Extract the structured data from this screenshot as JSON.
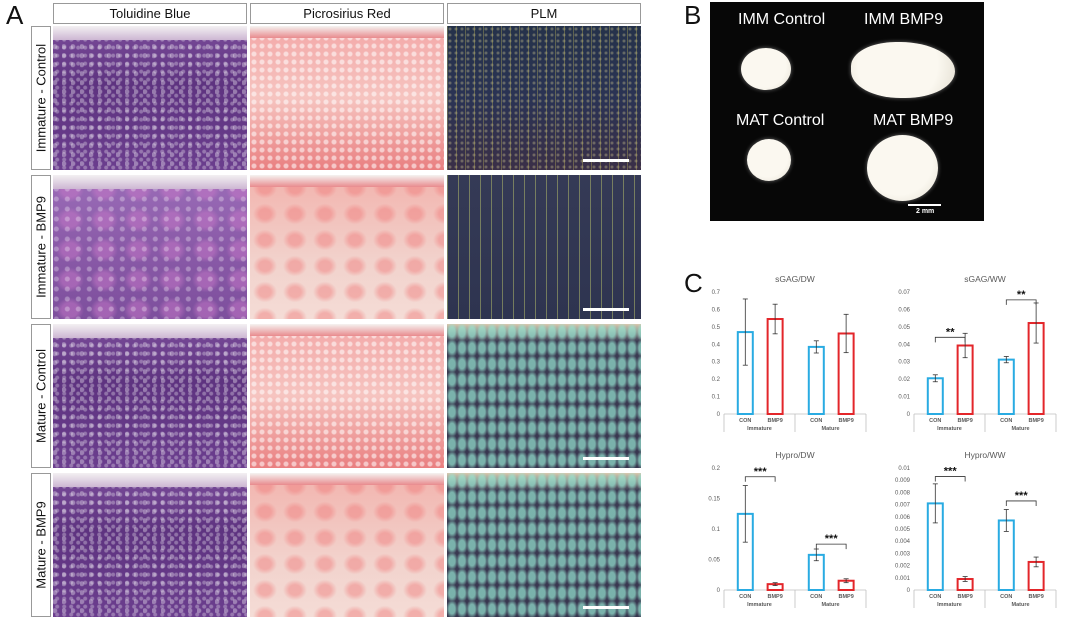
{
  "panel_a": {
    "letter": "A",
    "columns": [
      "Toluidine Blue",
      "Picrosirius Red",
      "PLM"
    ],
    "rows": [
      "Immature - Control",
      "Immature - BMP9",
      "Mature - Control",
      "Mature - BMP9"
    ]
  },
  "panel_b": {
    "letter": "B",
    "labels": [
      "IMM Control",
      "IMM BMP9",
      "MAT Control",
      "MAT BMP9"
    ],
    "scale_bar": "2 mm"
  },
  "panel_c": {
    "letter": "C"
  },
  "colors": {
    "control": "#29abe2",
    "bmp9": "#e3262a",
    "axis": "#bfbfbf"
  },
  "chart_data": [
    {
      "type": "bar",
      "title": "sGAG/DW",
      "groups": [
        "Immature",
        "Mature"
      ],
      "categories": [
        "CON",
        "BMP9",
        "CON",
        "BMP9"
      ],
      "values": [
        0.47,
        0.545,
        0.385,
        0.462
      ],
      "errors": [
        0.19,
        0.085,
        0.035,
        0.11
      ],
      "yticks": [
        "0",
        "0.1",
        "0.2",
        "0.3",
        "0.4",
        "0.5",
        "0.6",
        "0.7"
      ],
      "ylim": [
        0,
        0.7
      ],
      "significance": []
    },
    {
      "type": "bar",
      "title": "sGAG/WW",
      "groups": [
        "Immature",
        "Mature"
      ],
      "categories": [
        "CON",
        "BMP9",
        "CON",
        "BMP9"
      ],
      "values": [
        0.0205,
        0.0393,
        0.0312,
        0.0522
      ],
      "errors": [
        0.002,
        0.007,
        0.0018,
        0.0115
      ],
      "yticks": [
        "0",
        "0.01",
        "0.02",
        "0.03",
        "0.04",
        "0.05",
        "0.06",
        "0.07"
      ],
      "ylim": [
        0,
        0.07
      ],
      "significance": [
        {
          "from": 0,
          "to": 1,
          "y": 0.044,
          "label": "**"
        },
        {
          "from": 2,
          "to": 3,
          "y": 0.0655,
          "label": "**"
        }
      ]
    },
    {
      "type": "bar",
      "title": "Hypro/DW",
      "groups": [
        "Immature",
        "Mature"
      ],
      "categories": [
        "CON",
        "BMP9",
        "CON",
        "BMP9"
      ],
      "values": [
        0.156,
        0.012,
        0.072,
        0.019
      ],
      "errors": [
        0.058,
        0.003,
        0.012,
        0.004
      ],
      "yticks": [
        "0",
        "0.05",
        "0.1",
        "0.15",
        "0.2"
      ],
      "ylim": [
        0,
        0.25
      ],
      "significance": [
        {
          "from": 0,
          "to": 1,
          "y": 0.232,
          "label": "***"
        },
        {
          "from": 2,
          "to": 3,
          "y": 0.094,
          "label": "***"
        }
      ]
    },
    {
      "type": "bar",
      "title": "Hypro/WW",
      "groups": [
        "Immature",
        "Mature"
      ],
      "categories": [
        "CON",
        "BMP9",
        "CON",
        "BMP9"
      ],
      "values": [
        0.0071,
        0.0009,
        0.0057,
        0.0023
      ],
      "errors": [
        0.0016,
        0.0002,
        0.0009,
        0.0004
      ],
      "yticks": [
        "0",
        "0.001",
        "0.002",
        "0.003",
        "0.004",
        "0.005",
        "0.006",
        "0.007",
        "0.008",
        "0.009",
        "0.01"
      ],
      "ylim": [
        0,
        0.01
      ],
      "significance": [
        {
          "from": 0,
          "to": 1,
          "y": 0.0093,
          "label": "***"
        },
        {
          "from": 2,
          "to": 3,
          "y": 0.0073,
          "label": "***"
        }
      ]
    }
  ]
}
